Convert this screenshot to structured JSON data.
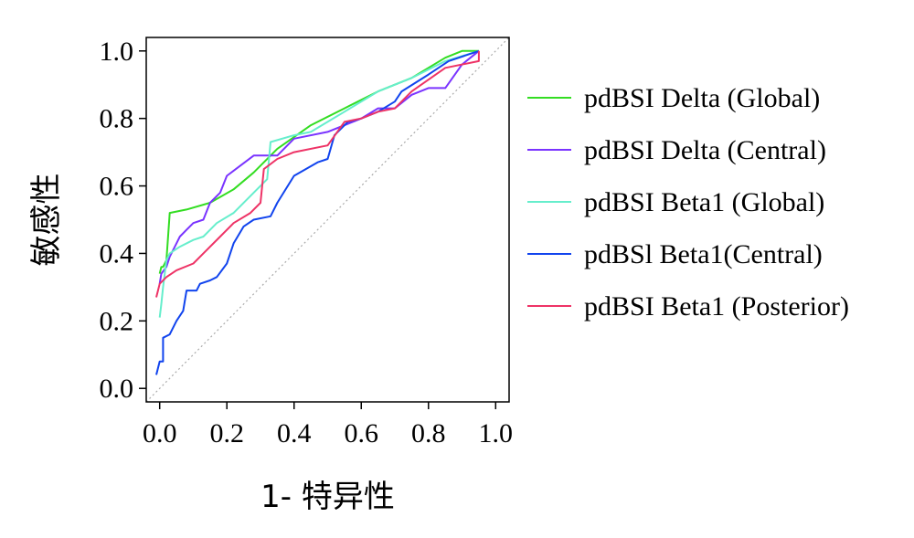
{
  "chart_data": {
    "type": "line",
    "title": "",
    "xlabel": "1- 特异性",
    "ylabel": "敏感性",
    "xlim": [
      -0.04,
      1.04
    ],
    "ylim": [
      -0.04,
      1.04
    ],
    "x_ticks": [
      0.0,
      0.2,
      0.4,
      0.6,
      0.8,
      1.0
    ],
    "x_tick_labels": [
      "0.0",
      "0.2",
      "0.4",
      "0.6",
      "0.8",
      "1.0"
    ],
    "y_ticks": [
      0.0,
      0.2,
      0.4,
      0.6,
      0.8,
      1.0
    ],
    "y_tick_labels": [
      "0.0",
      "0.2",
      "0.4",
      "0.6",
      "0.8",
      "1.0"
    ],
    "grid": false,
    "legend_position": "right",
    "reference_line": {
      "color": "#aaaaaa",
      "style": "dotted"
    },
    "series": [
      {
        "name": "pdBSI Delta (Global)",
        "color": "#33dd22",
        "points": [
          [
            0,
            0.34
          ],
          [
            0.005,
            0.36
          ],
          [
            0.01,
            0.36
          ],
          [
            0.02,
            0.38
          ],
          [
            0.03,
            0.52
          ],
          [
            0.08,
            0.53
          ],
          [
            0.15,
            0.55
          ],
          [
            0.22,
            0.59
          ],
          [
            0.28,
            0.64
          ],
          [
            0.35,
            0.71
          ],
          [
            0.45,
            0.78
          ],
          [
            0.55,
            0.83
          ],
          [
            0.65,
            0.88
          ],
          [
            0.75,
            0.92
          ],
          [
            0.85,
            0.98
          ],
          [
            0.9,
            1.0
          ],
          [
            0.95,
            1.0
          ]
        ]
      },
      {
        "name": "pdBSI Delta (Central)",
        "color": "#7a33ff",
        "points": [
          [
            0,
            0.31
          ],
          [
            0.005,
            0.34
          ],
          [
            0.02,
            0.36
          ],
          [
            0.03,
            0.39
          ],
          [
            0.05,
            0.43
          ],
          [
            0.06,
            0.45
          ],
          [
            0.08,
            0.47
          ],
          [
            0.1,
            0.49
          ],
          [
            0.13,
            0.5
          ],
          [
            0.15,
            0.55
          ],
          [
            0.18,
            0.58
          ],
          [
            0.2,
            0.63
          ],
          [
            0.28,
            0.69
          ],
          [
            0.35,
            0.69
          ],
          [
            0.4,
            0.74
          ],
          [
            0.5,
            0.76
          ],
          [
            0.6,
            0.8
          ],
          [
            0.65,
            0.83
          ],
          [
            0.7,
            0.83
          ],
          [
            0.75,
            0.87
          ],
          [
            0.8,
            0.89
          ],
          [
            0.85,
            0.89
          ],
          [
            0.9,
            0.96
          ],
          [
            0.95,
            1.0
          ]
        ]
      },
      {
        "name": "pdBSI Beta1 (Global)",
        "color": "#66eecc",
        "points": [
          [
            0,
            0.21
          ],
          [
            0.005,
            0.25
          ],
          [
            0.01,
            0.3
          ],
          [
            0.02,
            0.38
          ],
          [
            0.03,
            0.4
          ],
          [
            0.06,
            0.42
          ],
          [
            0.1,
            0.44
          ],
          [
            0.13,
            0.45
          ],
          [
            0.17,
            0.49
          ],
          [
            0.22,
            0.52
          ],
          [
            0.28,
            0.58
          ],
          [
            0.32,
            0.62
          ],
          [
            0.33,
            0.73
          ],
          [
            0.4,
            0.75
          ],
          [
            0.45,
            0.76
          ],
          [
            0.55,
            0.82
          ],
          [
            0.65,
            0.88
          ],
          [
            0.75,
            0.92
          ],
          [
            0.85,
            0.97
          ],
          [
            0.95,
            1.0
          ]
        ]
      },
      {
        "name": "pdBSl Beta1(Central)",
        "color": "#1144ee",
        "points": [
          [
            -0.01,
            0.04
          ],
          [
            0,
            0.08
          ],
          [
            0.01,
            0.08
          ],
          [
            0.01,
            0.15
          ],
          [
            0.03,
            0.16
          ],
          [
            0.05,
            0.2
          ],
          [
            0.07,
            0.23
          ],
          [
            0.08,
            0.29
          ],
          [
            0.11,
            0.29
          ],
          [
            0.12,
            0.31
          ],
          [
            0.15,
            0.32
          ],
          [
            0.17,
            0.33
          ],
          [
            0.2,
            0.37
          ],
          [
            0.22,
            0.43
          ],
          [
            0.25,
            0.48
          ],
          [
            0.28,
            0.5
          ],
          [
            0.33,
            0.51
          ],
          [
            0.35,
            0.55
          ],
          [
            0.4,
            0.63
          ],
          [
            0.47,
            0.67
          ],
          [
            0.5,
            0.68
          ],
          [
            0.52,
            0.75
          ],
          [
            0.56,
            0.79
          ],
          [
            0.6,
            0.8
          ],
          [
            0.65,
            0.82
          ],
          [
            0.7,
            0.85
          ],
          [
            0.72,
            0.88
          ],
          [
            0.8,
            0.93
          ],
          [
            0.86,
            0.97
          ],
          [
            0.95,
            1.0
          ]
        ]
      },
      {
        "name": "pdBSI Beta1 (Posterior)",
        "color": "#ee3366",
        "points": [
          [
            -0.01,
            0.27
          ],
          [
            0,
            0.31
          ],
          [
            0.02,
            0.33
          ],
          [
            0.05,
            0.35
          ],
          [
            0.1,
            0.37
          ],
          [
            0.13,
            0.4
          ],
          [
            0.18,
            0.45
          ],
          [
            0.22,
            0.49
          ],
          [
            0.27,
            0.52
          ],
          [
            0.3,
            0.55
          ],
          [
            0.31,
            0.65
          ],
          [
            0.35,
            0.68
          ],
          [
            0.4,
            0.7
          ],
          [
            0.5,
            0.72
          ],
          [
            0.55,
            0.79
          ],
          [
            0.6,
            0.8
          ],
          [
            0.65,
            0.82
          ],
          [
            0.7,
            0.83
          ],
          [
            0.75,
            0.88
          ],
          [
            0.85,
            0.95
          ],
          [
            0.95,
            0.97
          ],
          [
            0.95,
            1.0
          ]
        ]
      }
    ]
  }
}
